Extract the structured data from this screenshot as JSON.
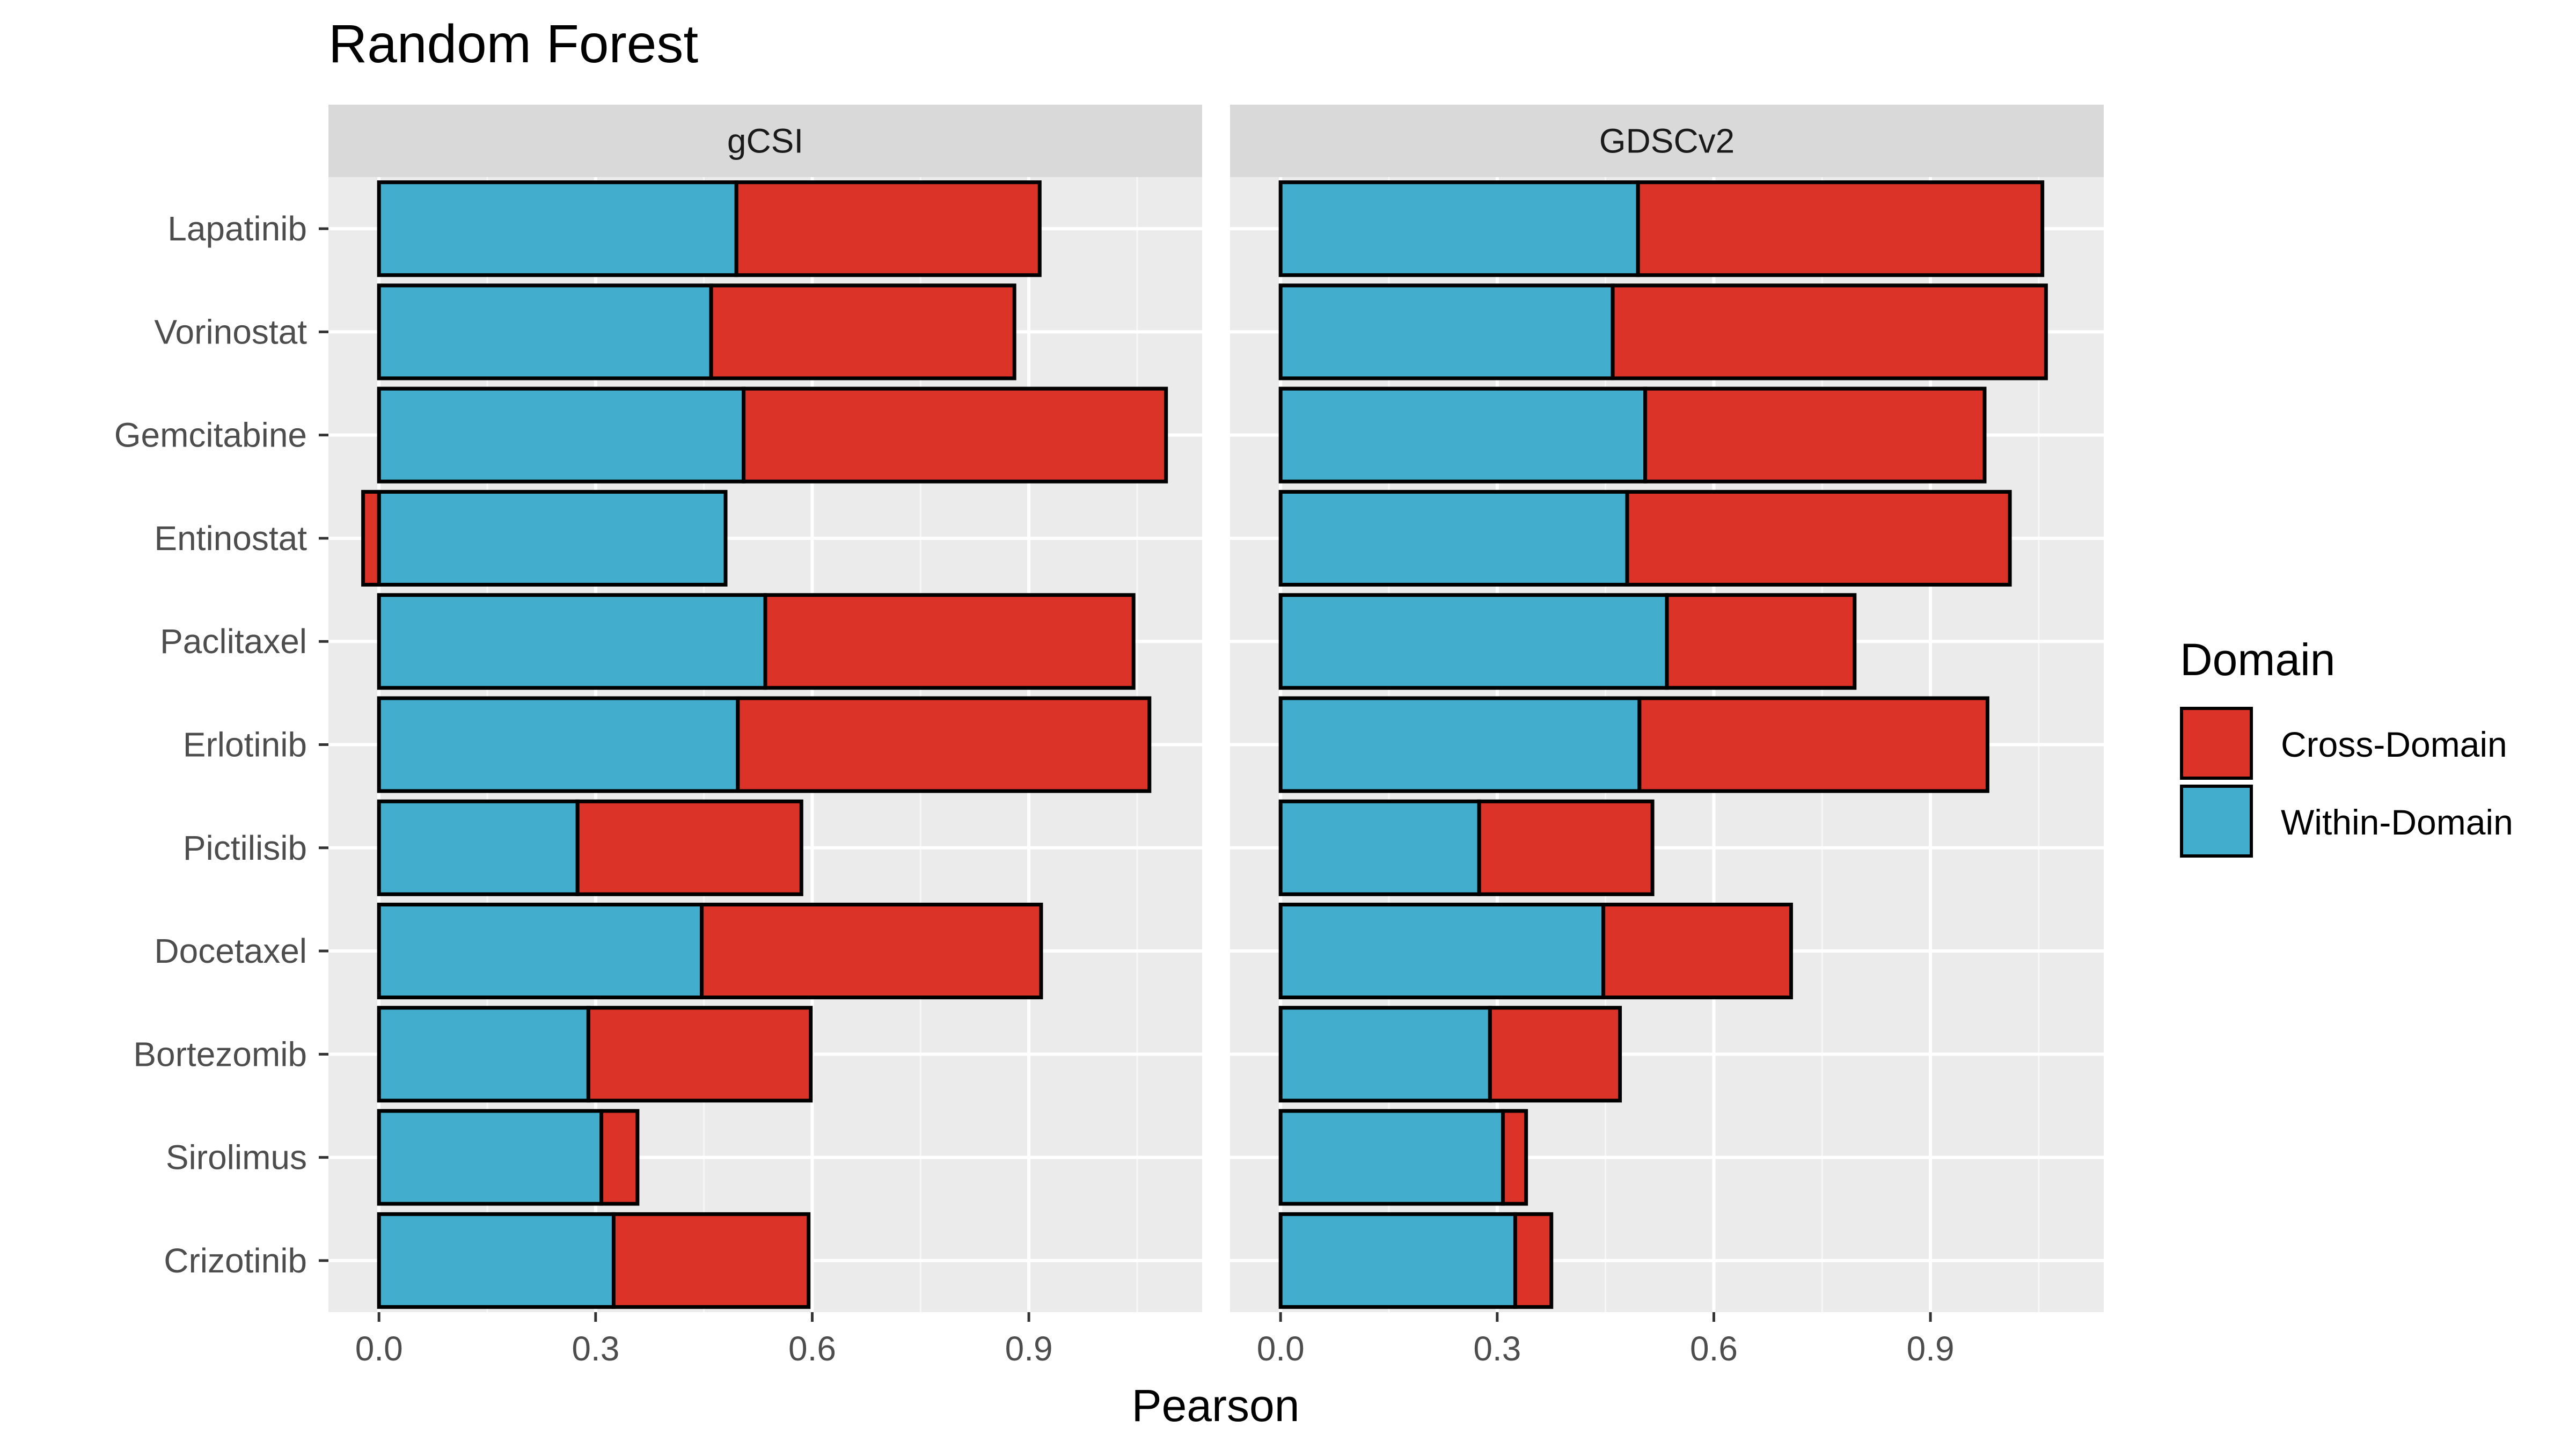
{
  "title": "Random Forest",
  "xlabel": "Pearson",
  "legend": {
    "title": "Domain",
    "items": [
      {
        "label": "Cross-Domain",
        "color": "#dc3329"
      },
      {
        "label": "Within-Domain",
        "color": "#42adcc"
      }
    ]
  },
  "chart_data": {
    "type": "bar",
    "orientation": "horizontal",
    "stacked": true,
    "xlim": [
      -0.07,
      1.14
    ],
    "xticks": [
      "0.0",
      "0.3",
      "0.6",
      "0.9"
    ],
    "grid": true,
    "legend_position": "right",
    "categories": [
      "Lapatinib",
      "Vorinostat",
      "Gemcitabine",
      "Entinostat",
      "Paclitaxel",
      "Erlotinib",
      "Pictilisib",
      "Docetaxel",
      "Bortezomib",
      "Sirolimus",
      "Crizotinib"
    ],
    "panels": [
      {
        "name": "gCSI",
        "series": [
          {
            "name": "Within-Domain",
            "values": [
              0.495,
              0.46,
              0.505,
              0.48,
              0.535,
              0.497,
              0.275,
              0.447,
              0.29,
              0.308,
              0.325
            ]
          },
          {
            "name": "Cross-Domain",
            "values": [
              0.42,
              0.42,
              0.585,
              -0.022,
              0.51,
              0.57,
              0.31,
              0.47,
              0.308,
              0.05,
              0.27
            ]
          }
        ]
      },
      {
        "name": "GDSCv2",
        "series": [
          {
            "name": "Within-Domain",
            "values": [
              0.495,
              0.46,
              0.505,
              0.48,
              0.535,
              0.497,
              0.275,
              0.447,
              0.29,
              0.308,
              0.325
            ]
          },
          {
            "name": "Cross-Domain",
            "values": [
              0.56,
              0.6,
              0.47,
              0.53,
              0.26,
              0.482,
              0.24,
              0.26,
              0.18,
              0.032,
              0.05
            ]
          }
        ]
      }
    ]
  }
}
